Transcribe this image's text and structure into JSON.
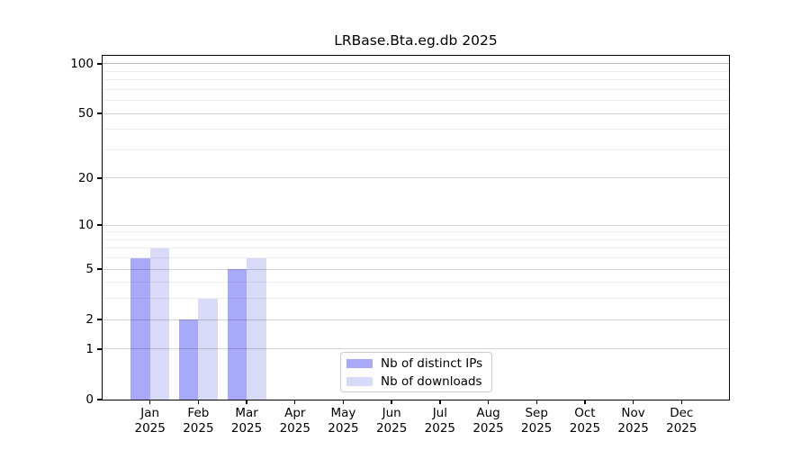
{
  "title": "LRBase.Bta.eg.db 2025",
  "chart_data": {
    "type": "bar",
    "title": "LRBase.Bta.eg.db 2025",
    "categories": [
      "Jan",
      "Feb",
      "Mar",
      "Apr",
      "May",
      "Jun",
      "Jul",
      "Aug",
      "Sep",
      "Oct",
      "Nov",
      "Dec"
    ],
    "x_year_label": "2025",
    "series": [
      {
        "name": "Nb of distinct IPs",
        "color": "#a9a9fa",
        "values": [
          6,
          2,
          5,
          0,
          0,
          0,
          0,
          0,
          0,
          0,
          0,
          0
        ]
      },
      {
        "name": "Nb of downloads",
        "color": "#d9d9f8",
        "values": [
          7,
          3,
          6,
          0,
          0,
          0,
          0,
          0,
          0,
          0,
          0,
          0
        ]
      }
    ],
    "yscale": "log1p",
    "ylim": [
      0,
      113
    ],
    "y_major_ticks": [
      0,
      1,
      2,
      5,
      10,
      20,
      50,
      100
    ],
    "y_minor_gridlines": [
      3,
      4,
      6,
      7,
      8,
      9,
      30,
      40,
      60,
      70,
      80,
      90
    ],
    "grid": true,
    "gridlines_above_bars": true,
    "legend_position": "lower center",
    "xlabel": "",
    "ylabel": ""
  }
}
